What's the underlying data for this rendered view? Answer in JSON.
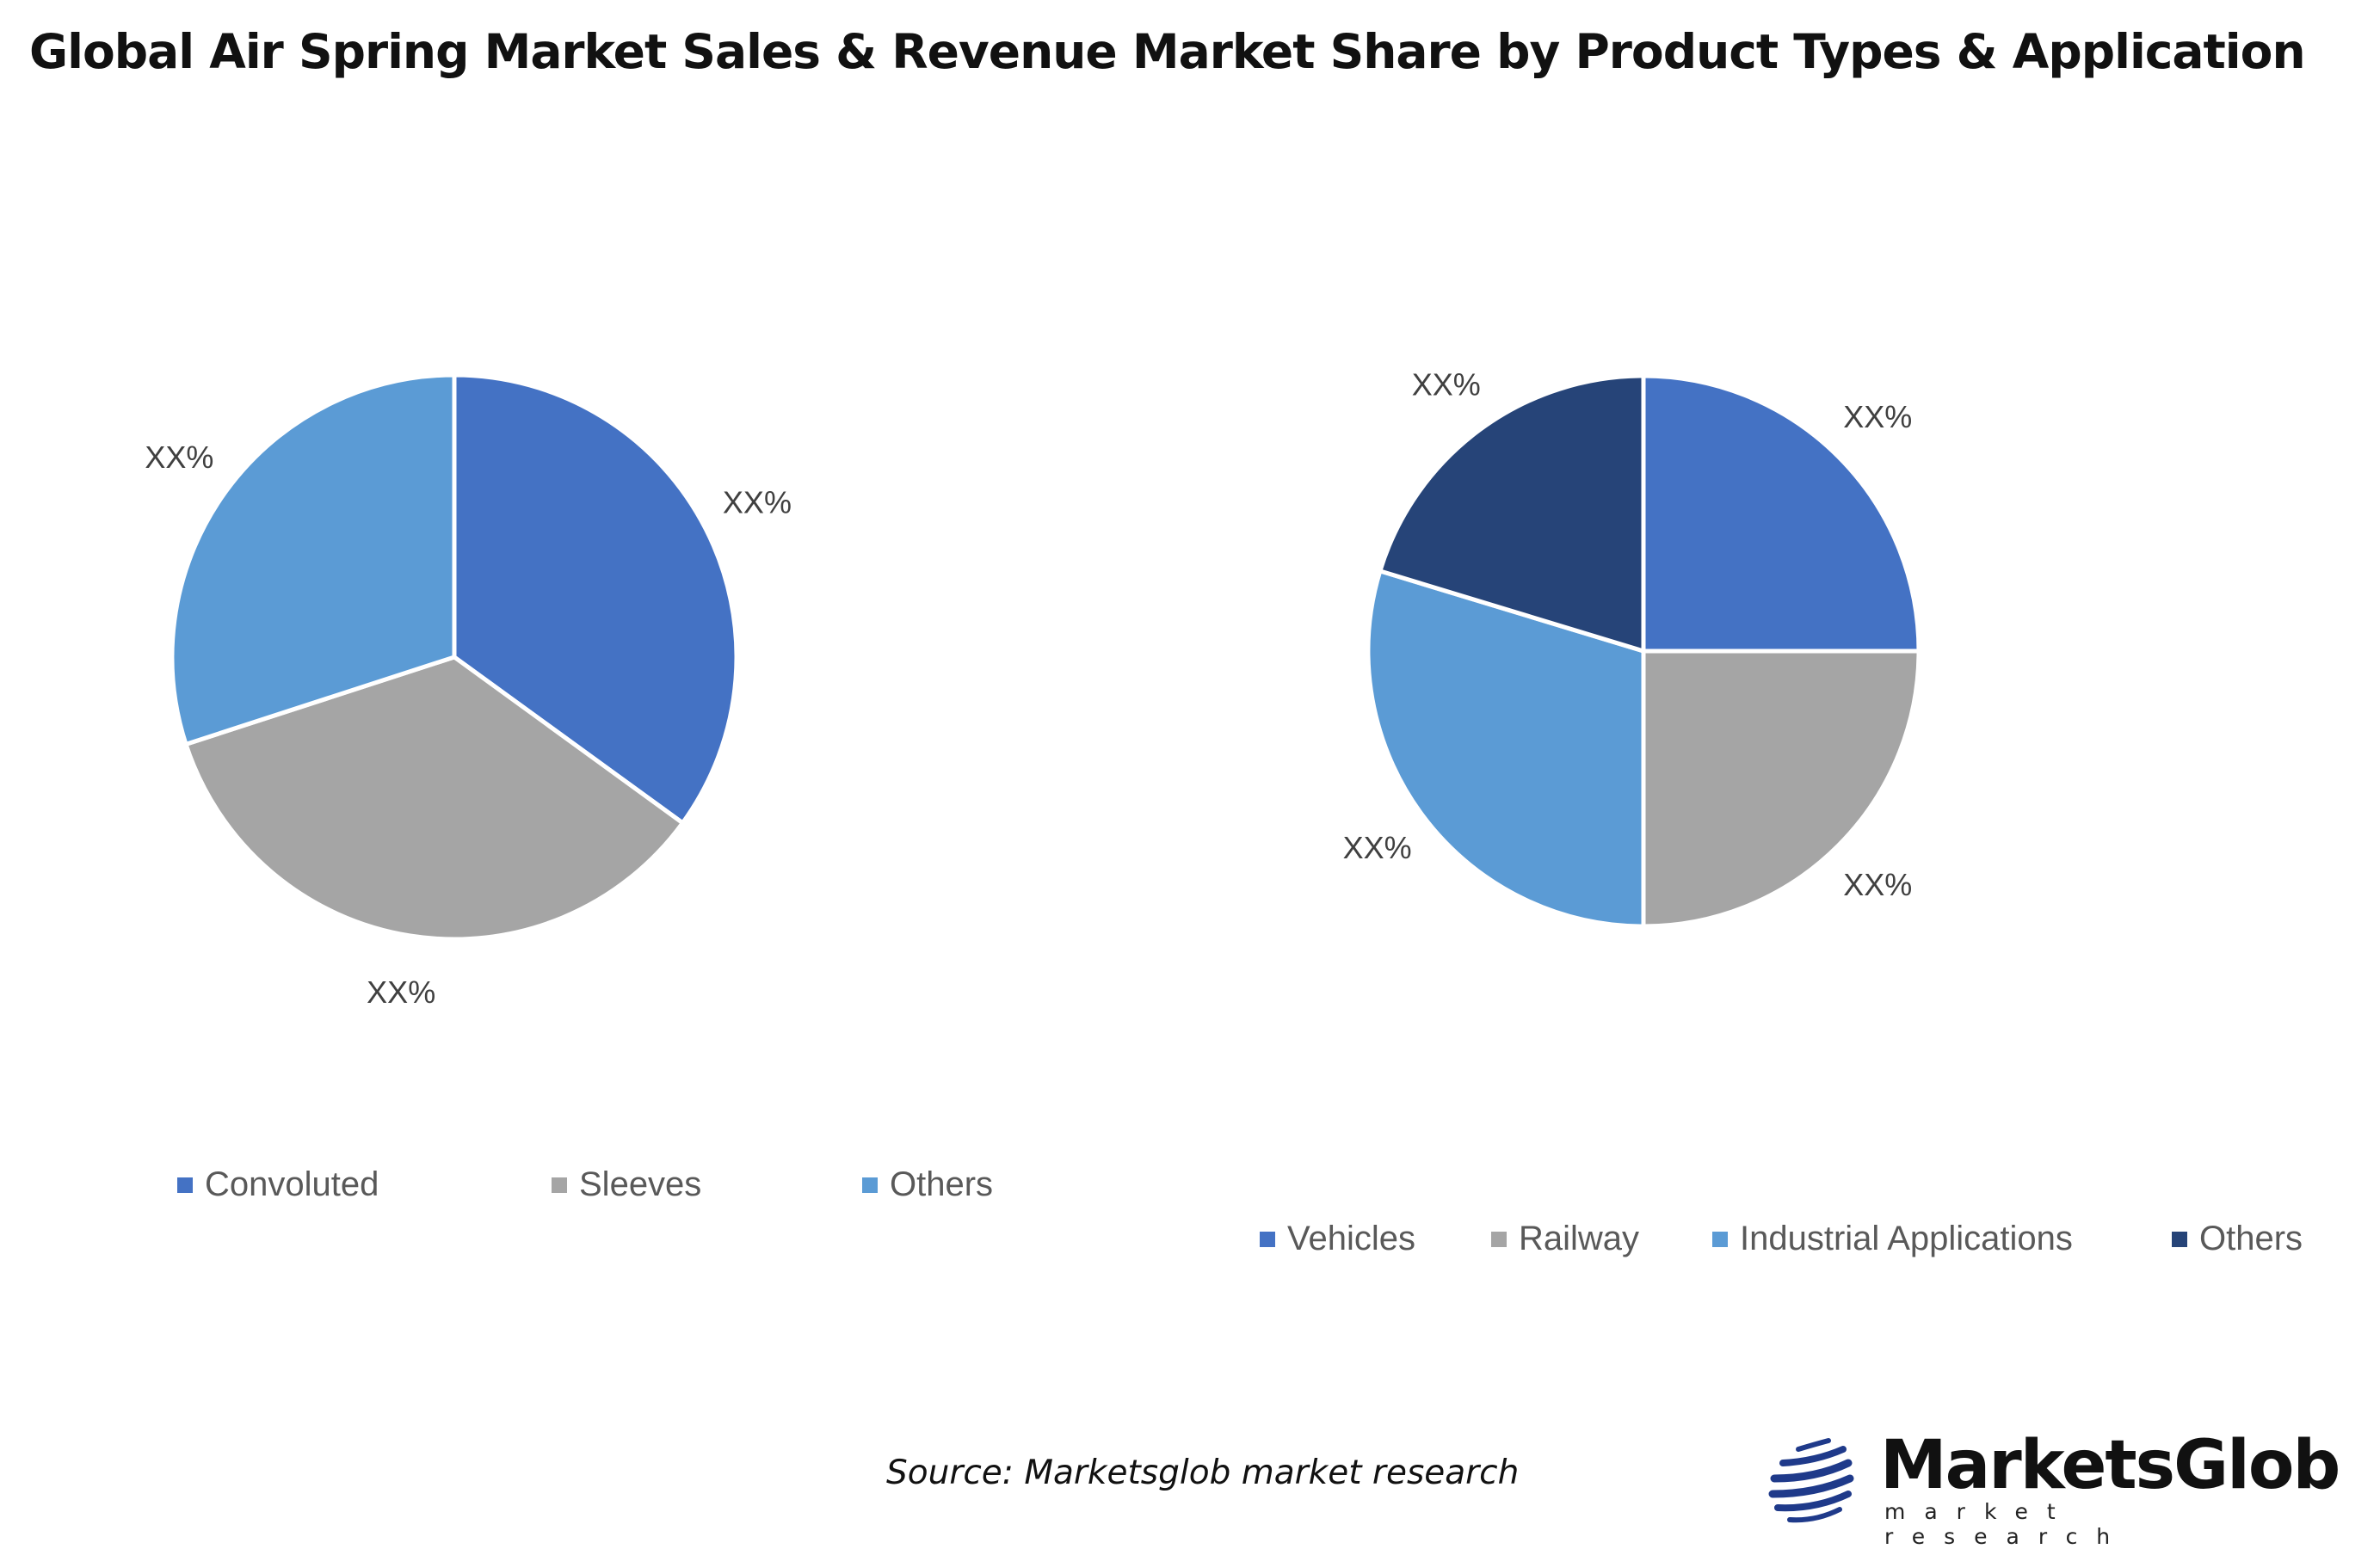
{
  "title": "Global Air Spring Market Sales & Revenue Market Share by Product Types & Application",
  "source": "Source: Marketsglob market research",
  "logo": {
    "name": "MarketsGlob",
    "tagline": "market research"
  },
  "chart_data": [
    {
      "type": "pie",
      "categories": [
        "Convoluted",
        "Sleeves",
        "Others"
      ],
      "values": [
        35,
        35,
        30
      ],
      "data_labels": [
        "XX%",
        "XX%",
        "XX%"
      ],
      "colors": [
        "#4472C4",
        "#A5A5A5",
        "#5B9BD5"
      ],
      "legend": "bottom"
    },
    {
      "type": "pie",
      "categories": [
        "Vehicles",
        "Railway",
        "Industrial Applications",
        "Others"
      ],
      "values": [
        25,
        25,
        29.7,
        20.3
      ],
      "data_labels": [
        "XX%",
        "XX%",
        "XX%",
        "XX%"
      ],
      "colors": [
        "#4472C4",
        "#A5A5A5",
        "#5B9BD5",
        "#264478"
      ],
      "legend": "bottom"
    }
  ]
}
